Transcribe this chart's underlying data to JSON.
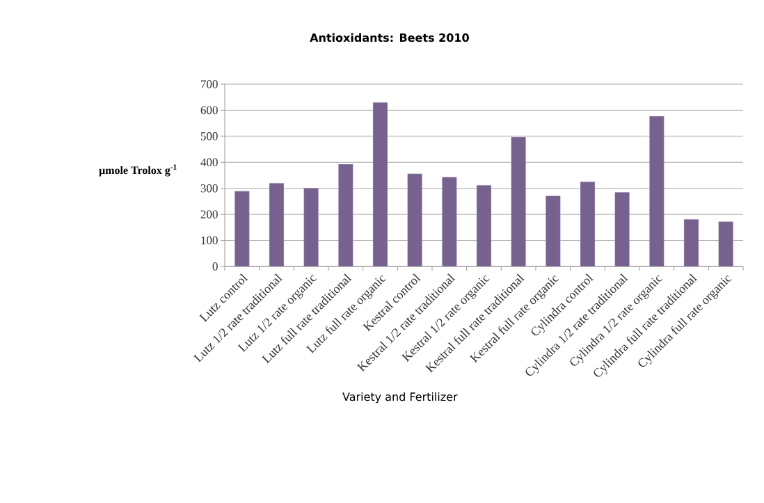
{
  "chart_data": {
    "type": "bar",
    "title": "Antioxidants: Beets 2010",
    "xlabel": "Variety and Fertilizer",
    "ylabel": "μmole Trolox g$^{-1}$",
    "categories": [
      "Lutz control",
      "Lutz 1/2 rate traditional",
      "Lutz 1/2 rate organic",
      "Lutz full rate traditional",
      "Lutz full rate organic",
      "Kestral control",
      "Kestral 1/2 rate traditional",
      "Kestral 1/2 rate organic",
      "Kestral full rate traditional",
      "Kestral full rate organic",
      "Cylindra control",
      "Cylindra 1/2 rate traditional",
      "Cylindra 1/2 rate organic",
      "Cylindra full rate traditional",
      "Cylindra full rate organic"
    ],
    "values": [
      289,
      320,
      301,
      393,
      630,
      356,
      343,
      312,
      497,
      271,
      325,
      285,
      577,
      181,
      172
    ],
    "color": "#77618f",
    "ylim": [
      0,
      700
    ],
    "yticks": [
      0,
      100,
      200,
      300,
      400,
      500,
      600,
      700
    ],
    "grid": "y"
  }
}
